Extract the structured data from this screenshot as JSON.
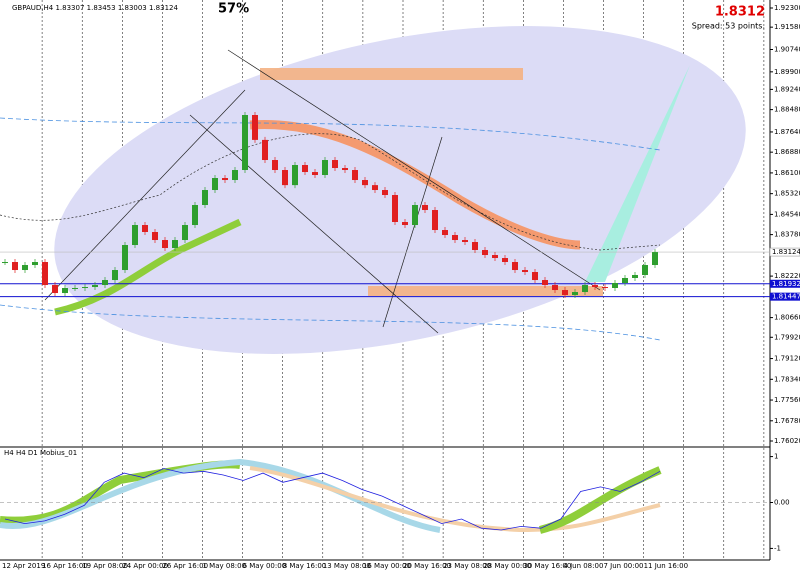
{
  "chart_data": {
    "type": "candlestick",
    "title": "GBPAUD,H4 1.83307 1.83453 1.83003 1.83124",
    "percent": "57%",
    "bid": "1.8312",
    "spread": "Spread: 53 points.",
    "ylim": [
      1.7587,
      1.92601
    ],
    "yticks": [
      {
        "value": 1.923,
        "label": "1.92300"
      },
      {
        "value": 1.9158,
        "label": "1.91580"
      },
      {
        "value": 1.9074,
        "label": "1.90740"
      },
      {
        "value": 1.899,
        "label": "1.89900"
      },
      {
        "value": 1.8924,
        "label": "1.89240"
      },
      {
        "value": 1.8848,
        "label": "1.88480"
      },
      {
        "value": 1.8764,
        "label": "1.87640"
      },
      {
        "value": 1.8688,
        "label": "1.86880"
      },
      {
        "value": 1.861,
        "label": "1.86100"
      },
      {
        "value": 1.8532,
        "label": "1.85320"
      },
      {
        "value": 1.8454,
        "label": "1.84540"
      },
      {
        "value": 1.8378,
        "label": "1.83780"
      },
      {
        "value": 1.8222,
        "label": "1.82220"
      },
      {
        "value": 1.8066,
        "label": "1.80660"
      },
      {
        "value": 1.7992,
        "label": "1.79920"
      },
      {
        "value": 1.7912,
        "label": "1.79120"
      },
      {
        "value": 1.7834,
        "label": "1.78340"
      },
      {
        "value": 1.7756,
        "label": "1.77560"
      },
      {
        "value": 1.7678,
        "label": "1.76780"
      },
      {
        "value": 1.7602,
        "label": "1.76020"
      }
    ],
    "current": {
      "value": 1.83124,
      "label": "1.83124"
    },
    "levels": [
      {
        "value": 1.81932,
        "label": "1.81932"
      },
      {
        "value": 1.81447,
        "label": "1.81447"
      }
    ],
    "categories": [
      "12 Apr 2019",
      "16 Apr 16:00",
      "19 Apr 08:00",
      "24 Apr 00:00",
      "26 Apr 16:00",
      "1 May 08:00",
      "6 May 00:00",
      "8 May 16:00",
      "13 May 08:00",
      "16 May 00:00",
      "20 May 16:00",
      "23 May 08:00",
      "28 May 00:00",
      "30 May 16:00",
      "4 Jun 08:00",
      "7 Jun 00:00",
      "11 Jun 16:00",
      null,
      null,
      null
    ],
    "price": {
      "up_color": "#2e9e2e",
      "down_color": "#e02020",
      "values": [
        1.8275,
        1.82449,
        1.82637,
        1.8275,
        1.81885,
        1.81584,
        1.81773,
        1.81773,
        1.8181,
        1.81885,
        1.82073,
        1.82449,
        1.83389,
        1.84141,
        1.83878,
        1.83577,
        1.83276,
        1.83577,
        1.84141,
        1.84893,
        1.85457,
        1.85908,
        1.85833,
        1.86209,
        1.88277,
        1.87341,
        1.86585,
        1.86209,
        1.85641,
        1.86397,
        1.86133,
        1.86021,
        1.86585,
        1.86284,
        1.86209,
        1.85833,
        1.85641,
        1.85457,
        1.85269,
        1.84254,
        1.84141,
        1.84893,
        1.84705,
        1.83953,
        1.83765,
        1.83577,
        1.83502,
        1.83201,
        1.83013,
        1.829,
        1.8275,
        1.82449,
        1.82374,
        1.82073,
        1.81885,
        1.81697,
        1.81509,
        1.81622,
        1.81885,
        1.8181,
        1.81773,
        1.81961,
        1.82149,
        1.82262,
        1.82637,
        1.83124
      ]
    },
    "indicator": {
      "title": "H4 H4 D1 Mobius_01",
      "ylim": [
        -1.1,
        1.1
      ],
      "yticks": [
        1,
        {
          "value": 0,
          "label": "0.00"
        },
        -1
      ],
      "series": [
        {
          "color": "#2020e0",
          "values": [
            -0.36,
            -0.46,
            -0.4,
            -0.26,
            -0.06,
            0.44,
            0.64,
            0.54,
            0.74,
            0.64,
            0.68,
            0.6,
            0.48,
            0.64,
            0.44,
            0.54,
            0.64,
            0.48,
            0.28,
            0.14,
            -0.06,
            -0.26,
            -0.46,
            -0.36,
            -0.56,
            -0.6,
            -0.52,
            -0.56,
            -0.36,
            0.24,
            0.34,
            0.24,
            0.44,
            0.68
          ]
        }
      ]
    }
  }
}
